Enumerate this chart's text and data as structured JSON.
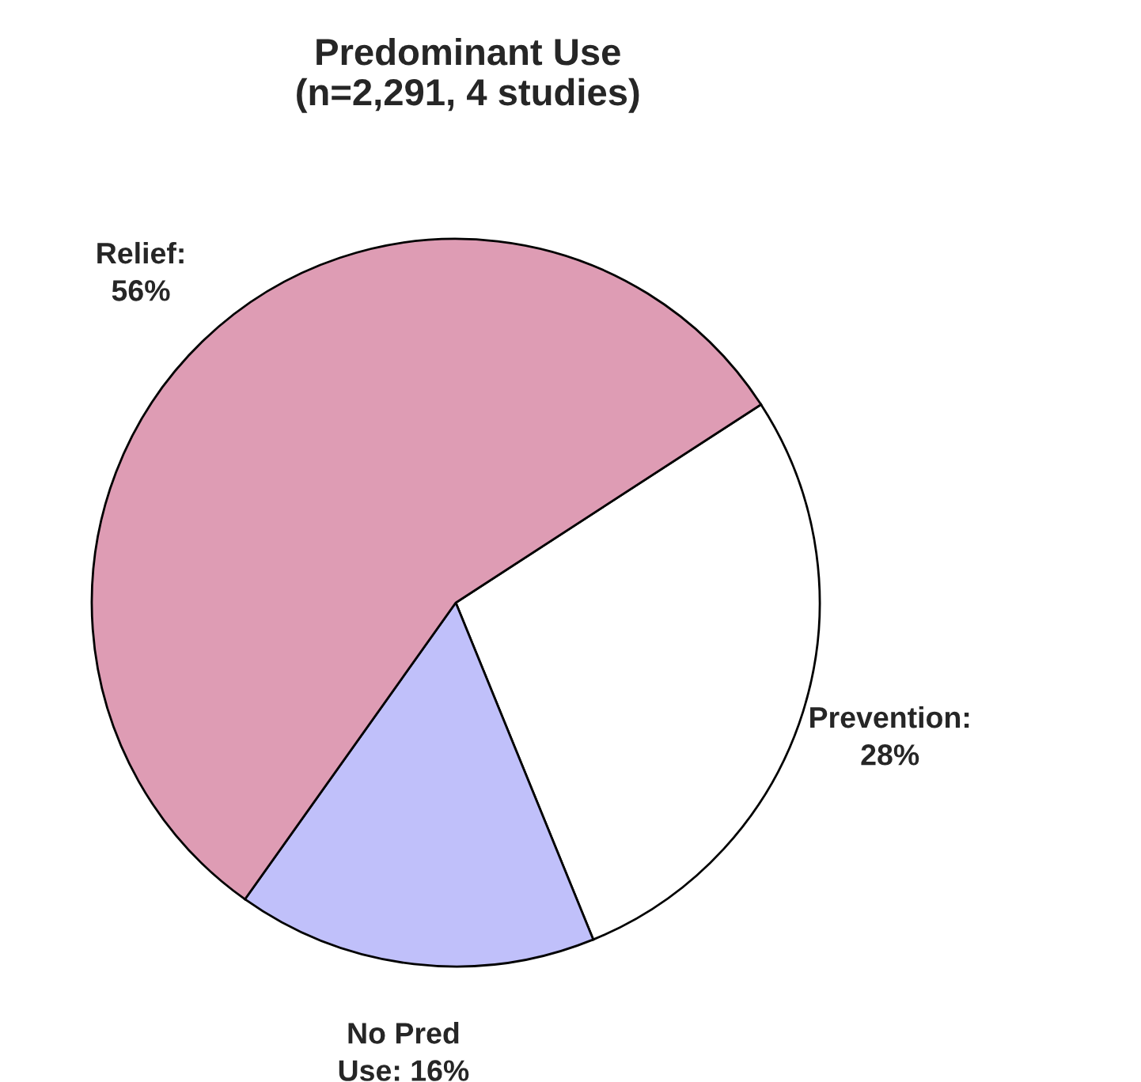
{
  "chart_data": {
    "type": "pie",
    "title": "Predominant Use\n(n=2,291, 4 studies)",
    "categories": [
      null,
      null,
      null
    ],
    "values": [
      28,
      16,
      56
    ],
    "value_labels": [
      "Prevention:\n28%",
      "No Pred\nUse: 16%",
      "Relief:\n56%"
    ],
    "colors": [
      "#ffffff",
      "#c0c0fa",
      "#de9cb4"
    ],
    "legend": false
  }
}
